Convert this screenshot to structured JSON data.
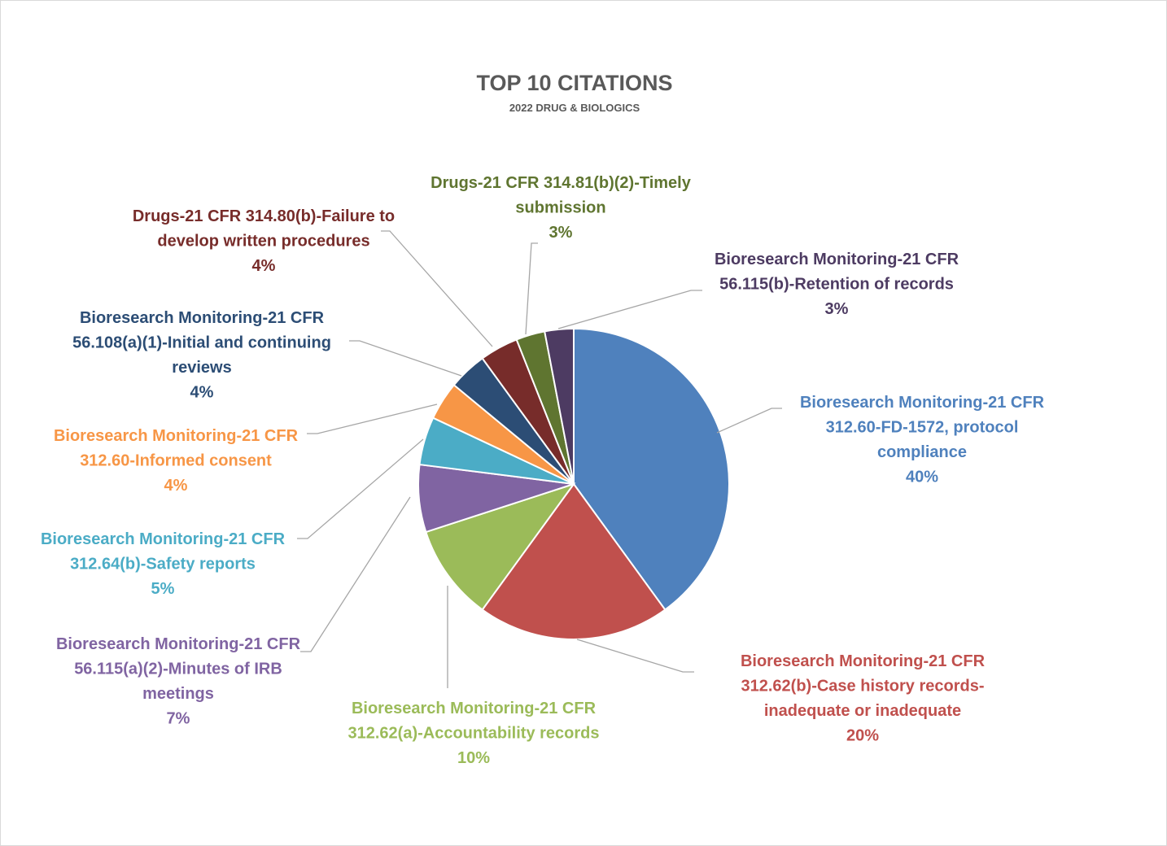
{
  "chart_data": {
    "type": "pie",
    "title": "TOP 10 CITATIONS",
    "subtitle": "2022 DRUG & BIOLOGICS",
    "slices": [
      {
        "label_lines": [
          "Bioresearch Monitoring-21 CFR",
          "312.60-FD-1572, protocol",
          "compliance"
        ],
        "percent_label": "40%",
        "value": 40,
        "color": "#4f81bd"
      },
      {
        "label_lines": [
          "Bioresearch Monitoring-21 CFR",
          "312.62(b)-Case history records-",
          "inadequate or inadequate"
        ],
        "percent_label": "20%",
        "value": 20,
        "color": "#c0504d"
      },
      {
        "label_lines": [
          "Bioresearch Monitoring-21 CFR",
          "312.62(a)-Accountability records"
        ],
        "percent_label": "10%",
        "value": 10,
        "color": "#9bbb59"
      },
      {
        "label_lines": [
          "Bioresearch Monitoring-21 CFR",
          "56.115(a)(2)-Minutes of IRB",
          "meetings"
        ],
        "percent_label": "7%",
        "value": 7,
        "color": "#8064a2"
      },
      {
        "label_lines": [
          "Bioresearch Monitoring-21 CFR",
          "312.64(b)-Safety reports"
        ],
        "percent_label": "5%",
        "value": 5,
        "color": "#4bacc6"
      },
      {
        "label_lines": [
          "Bioresearch Monitoring-21 CFR",
          "312.60-Informed consent"
        ],
        "percent_label": "4%",
        "value": 4,
        "color": "#f79646"
      },
      {
        "label_lines": [
          "Bioresearch Monitoring-21 CFR",
          "56.108(a)(1)-Initial and continuing",
          "reviews"
        ],
        "percent_label": "4%",
        "value": 4,
        "color": "#2c4d75"
      },
      {
        "label_lines": [
          "Drugs-21 CFR 314.80(b)-Failure to",
          "develop written procedures"
        ],
        "percent_label": "4%",
        "value": 4,
        "color": "#772c2a"
      },
      {
        "label_lines": [
          "Drugs-21 CFR 314.81(b)(2)-Timely",
          "submission"
        ],
        "percent_label": "3%",
        "value": 3,
        "color": "#5f7530"
      },
      {
        "label_lines": [
          "Bioresearch Monitoring-21 CFR",
          "56.115(b)-Retention of records"
        ],
        "percent_label": "3%",
        "value": 3,
        "color": "#4d3b62"
      }
    ]
  }
}
